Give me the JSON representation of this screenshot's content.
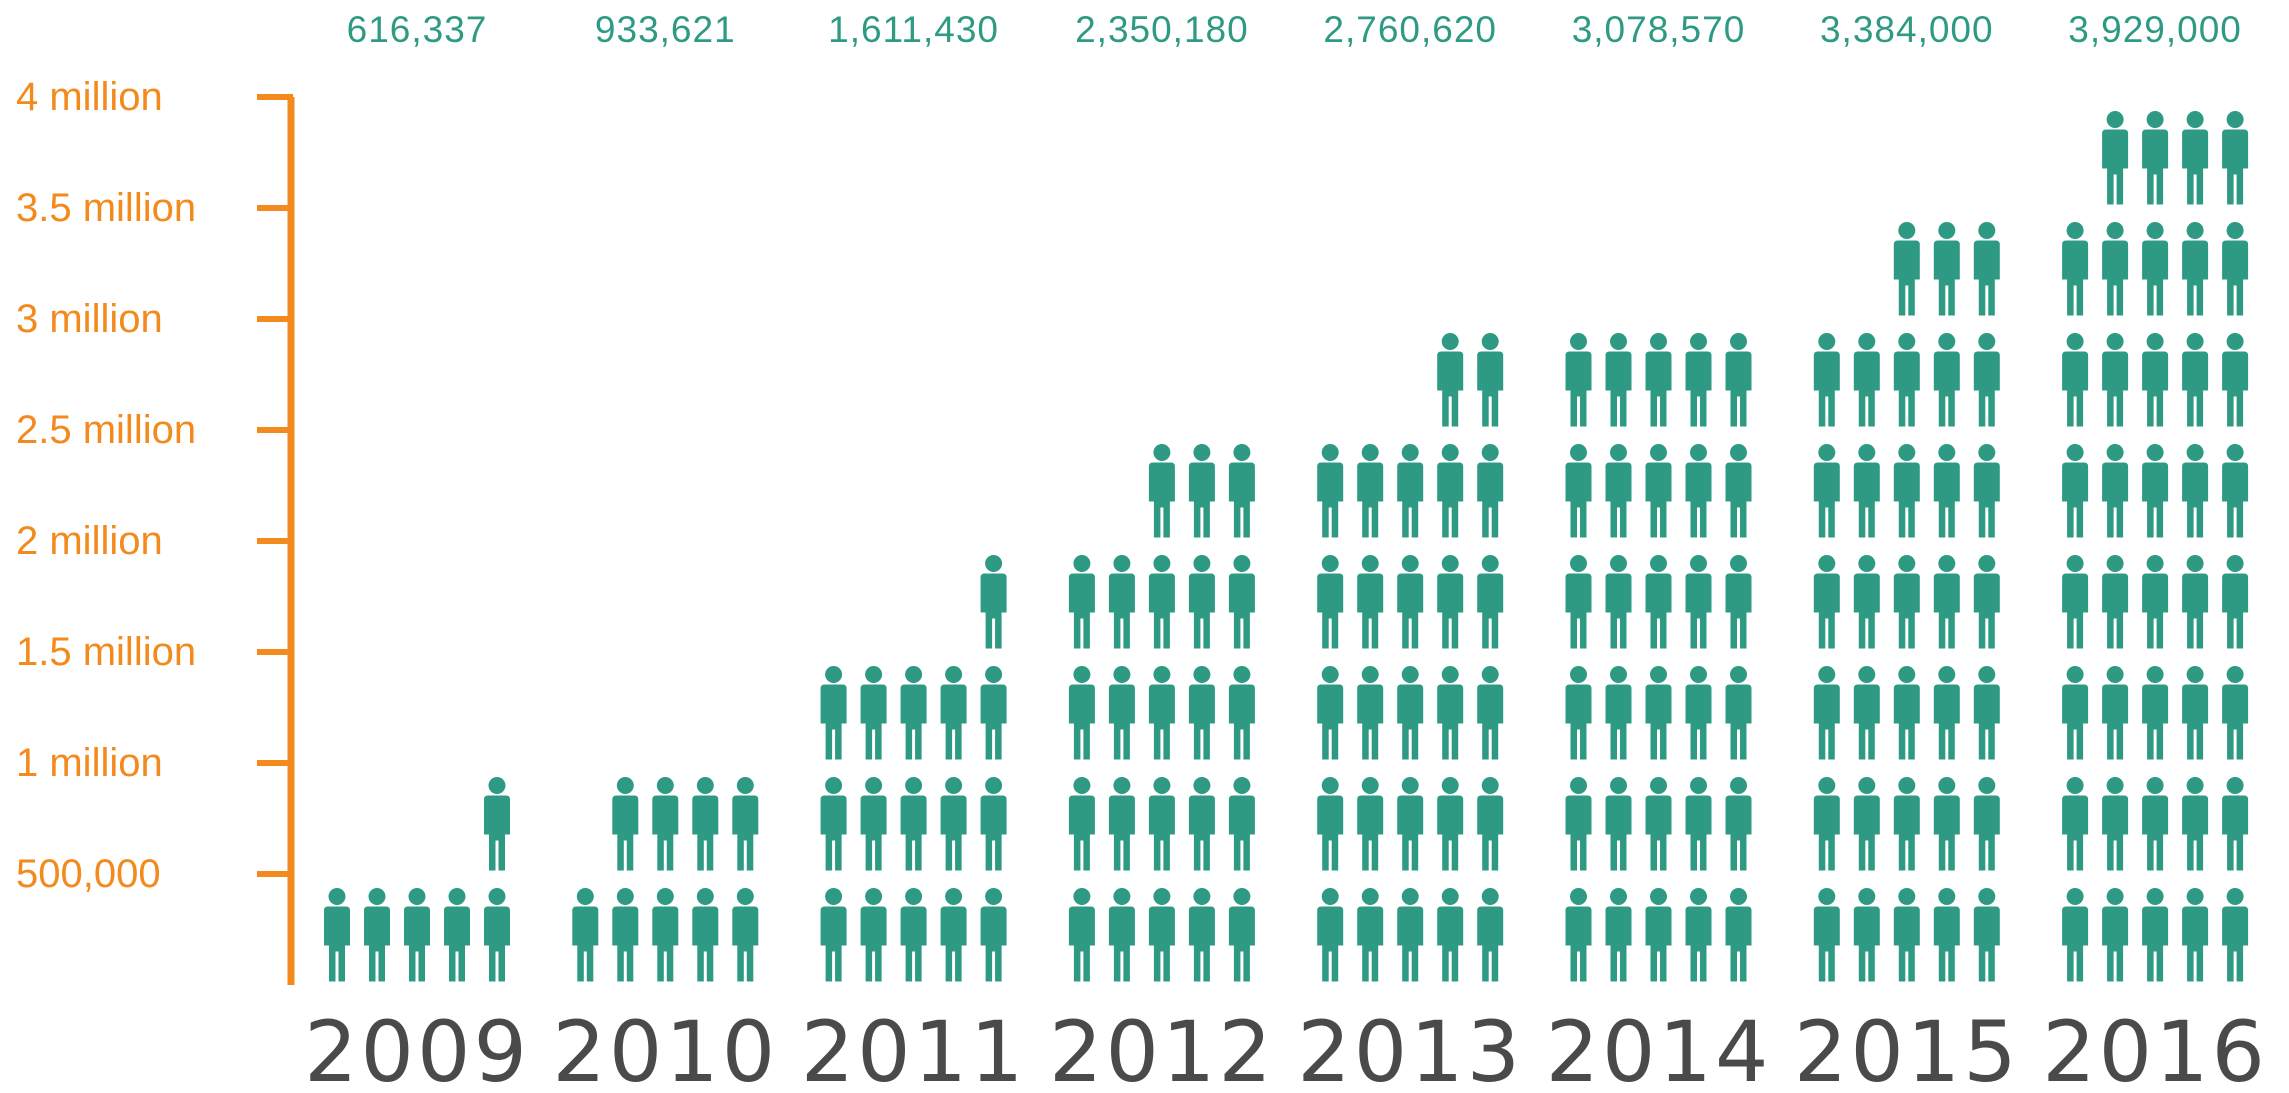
{
  "chart_data": {
    "type": "bar",
    "categories": [
      "2009",
      "2010",
      "2011",
      "2012",
      "2013",
      "2014",
      "2015",
      "2016"
    ],
    "values": [
      616337,
      933621,
      1611430,
      2350180,
      2760620,
      3078570,
      3384000,
      3929000
    ],
    "value_labels": [
      "616,337",
      "933,621",
      "1,611,430",
      "2,350,180",
      "2,760,620",
      "3,078,570",
      "3,384,000",
      "3,929,000"
    ],
    "ylim": [
      0,
      4000000
    ],
    "y_ticks": [
      {
        "value": 500000,
        "label": "500,000"
      },
      {
        "value": 1000000,
        "label": "1 million"
      },
      {
        "value": 1500000,
        "label": "1.5 million"
      },
      {
        "value": 2000000,
        "label": "2 million"
      },
      {
        "value": 2500000,
        "label": "2.5 million"
      },
      {
        "value": 3000000,
        "label": "3 million"
      },
      {
        "value": 3500000,
        "label": "3.5 million"
      },
      {
        "value": 4000000,
        "label": "4 million"
      }
    ],
    "grid": false,
    "mark": "person-icon"
  },
  "colors": {
    "icon": "#2e9a84",
    "axis": "#f28a1e",
    "value_text": "#2e9a84",
    "year_text": "#4a4a4a"
  },
  "icon_name": "person-icon"
}
